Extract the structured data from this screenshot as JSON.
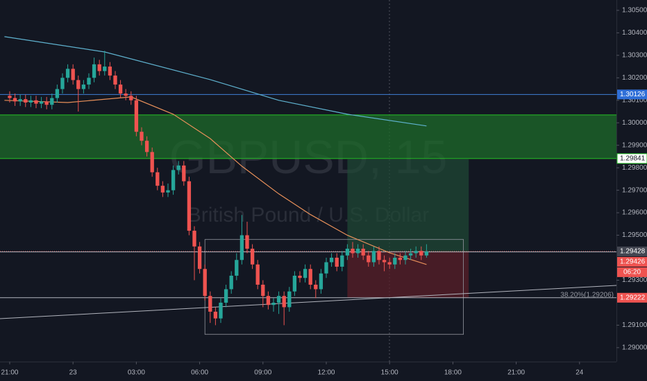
{
  "chart_data": {
    "type": "candlestick",
    "watermark": "GBPUSD, 15",
    "watermark_subtitle": "British Pound / U.S. Dollar",
    "xlim": [
      -1.84,
      115
    ],
    "ylim": [
      1.28938,
      1.30546
    ],
    "xticks": [
      {
        "value": 0,
        "label": "21:00"
      },
      {
        "value": 12,
        "label": "23"
      },
      {
        "value": 24,
        "label": "03:00"
      },
      {
        "value": 36,
        "label": "06:00"
      },
      {
        "value": 48,
        "label": "09:00"
      },
      {
        "value": 60,
        "label": "12:00"
      },
      {
        "value": 72,
        "label": "15:00"
      },
      {
        "value": 84,
        "label": "18:00"
      },
      {
        "value": 96,
        "label": "21:00"
      },
      {
        "value": 108,
        "label": "24"
      }
    ],
    "yticks": [
      {
        "value": 1.305,
        "label": "1.30500"
      },
      {
        "value": 1.304,
        "label": "1.30400"
      },
      {
        "value": 1.303,
        "label": "1.30300"
      },
      {
        "value": 1.302,
        "label": "1.30200"
      },
      {
        "value": 1.301,
        "label": "1.30100"
      },
      {
        "value": 1.3,
        "label": "1.30000"
      },
      {
        "value": 1.299,
        "label": "1.29900"
      },
      {
        "value": 1.298,
        "label": "1.29800"
      },
      {
        "value": 1.297,
        "label": "1.29700"
      },
      {
        "value": 1.296,
        "label": "1.29600"
      },
      {
        "value": 1.295,
        "label": "1.29500"
      },
      {
        "value": 1.293,
        "label": "1.29300"
      },
      {
        "value": 1.291,
        "label": "1.29100"
      },
      {
        "value": 1.29,
        "label": "1.29000"
      }
    ],
    "up_color": "#26a69a",
    "down_color": "#ef5350",
    "ohlc": [
      [
        1.3012,
        1.3014,
        1.3009,
        1.3011
      ],
      [
        1.3011,
        1.3013,
        1.30075,
        1.30095
      ],
      [
        1.30095,
        1.30125,
        1.30075,
        1.30105
      ],
      [
        1.30105,
        1.30125,
        1.3007,
        1.3009
      ],
      [
        1.3009,
        1.3012,
        1.3007,
        1.301
      ],
      [
        1.301,
        1.3012,
        1.30065,
        1.30085
      ],
      [
        1.30085,
        1.30115,
        1.30065,
        1.30095
      ],
      [
        1.30095,
        1.30115,
        1.3006,
        1.3008
      ],
      [
        1.3008,
        1.3013,
        1.3006,
        1.3011
      ],
      [
        1.3011,
        1.3017,
        1.3009,
        1.3015
      ],
      [
        1.3015,
        1.3022,
        1.3013,
        1.302
      ],
      [
        1.302,
        1.3026,
        1.3018,
        1.3024
      ],
      [
        1.3024,
        1.3026,
        1.3017,
        1.3019
      ],
      [
        1.3019,
        1.3021,
        1.3005,
        1.3015
      ],
      [
        1.3015,
        1.3019,
        1.3013,
        1.3017
      ],
      [
        1.3017,
        1.3022,
        1.3015,
        1.302
      ],
      [
        1.302,
        1.3029,
        1.3018,
        1.3026
      ],
      [
        1.3026,
        1.3028,
        1.3021,
        1.3023
      ],
      [
        1.3023,
        1.3032,
        1.3021,
        1.3025
      ],
      [
        1.3025,
        1.3027,
        1.3019,
        1.3021
      ],
      [
        1.3021,
        1.3023,
        1.3015,
        1.3017
      ],
      [
        1.3017,
        1.3019,
        1.3011,
        1.3013
      ],
      [
        1.3013,
        1.3015,
        1.301,
        1.3012
      ],
      [
        1.3012,
        1.3014,
        1.3008,
        1.301
      ],
      [
        1.301,
        1.3012,
        1.2994,
        1.2996
      ],
      [
        1.2996,
        1.2998,
        1.299,
        1.2992
      ],
      [
        1.2992,
        1.2994,
        1.2985,
        1.2987
      ],
      [
        1.2987,
        1.2989,
        1.2976,
        1.2978
      ],
      [
        1.2978,
        1.298,
        1.297,
        1.2972
      ],
      [
        1.2972,
        1.2974,
        1.2967,
        1.2969
      ],
      [
        1.2969,
        1.2973,
        1.2967,
        1.297
      ],
      [
        1.297,
        1.2981,
        1.2968,
        1.2979
      ],
      [
        1.2979,
        1.2983,
        1.2977,
        1.2981
      ],
      [
        1.2981,
        1.2983,
        1.2972,
        1.2974
      ],
      [
        1.2974,
        1.2976,
        1.295,
        1.2952
      ],
      [
        1.2952,
        1.2954,
        1.293,
        1.2945
      ],
      [
        1.2945,
        1.2947,
        1.2933,
        1.2935
      ],
      [
        1.2935,
        1.2937,
        1.2921,
        1.2923
      ],
      [
        1.2923,
        1.2925,
        1.2911,
        1.2916
      ],
      [
        1.2916,
        1.2918,
        1.291,
        1.2913
      ],
      [
        1.2913,
        1.2922,
        1.2911,
        1.292
      ],
      [
        1.292,
        1.2928,
        1.2918,
        1.2926
      ],
      [
        1.2926,
        1.2934,
        1.2924,
        1.2932
      ],
      [
        1.2932,
        1.2942,
        1.293,
        1.2939
      ],
      [
        1.2939,
        1.2959,
        1.2937,
        1.295
      ],
      [
        1.295,
        1.2956,
        1.2942,
        1.2944
      ],
      [
        1.2944,
        1.2946,
        1.2935,
        1.2937
      ],
      [
        1.2937,
        1.2939,
        1.2926,
        1.2928
      ],
      [
        1.2928,
        1.293,
        1.2918,
        1.2923
      ],
      [
        1.2923,
        1.2925,
        1.2917,
        1.2919
      ],
      [
        1.2919,
        1.2922,
        1.2916,
        1.292
      ],
      [
        1.292,
        1.2925,
        1.2915,
        1.2923
      ],
      [
        1.2923,
        1.2925,
        1.291,
        1.2918
      ],
      [
        1.2918,
        1.2927,
        1.2916,
        1.2925
      ],
      [
        1.2925,
        1.2934,
        1.2923,
        1.2932
      ],
      [
        1.2932,
        1.2934,
        1.2929,
        1.2931
      ],
      [
        1.2931,
        1.2937,
        1.2929,
        1.2935
      ],
      [
        1.2935,
        1.2937,
        1.2926,
        1.2928
      ],
      [
        1.2928,
        1.293,
        1.2922,
        1.2926
      ],
      [
        1.2926,
        1.2935,
        1.2924,
        1.2933
      ],
      [
        1.2933,
        1.294,
        1.2931,
        1.2938
      ],
      [
        1.2938,
        1.2942,
        1.2936,
        1.294
      ],
      [
        1.294,
        1.2942,
        1.2934,
        1.2936
      ],
      [
        1.2936,
        1.2943,
        1.2934,
        1.2941
      ],
      [
        1.2941,
        1.2946,
        1.2939,
        1.2944
      ],
      [
        1.2944,
        1.2947,
        1.294,
        1.2942
      ],
      [
        1.2942,
        1.2946,
        1.294,
        1.2944
      ],
      [
        1.2944,
        1.2946,
        1.2939,
        1.2941
      ],
      [
        1.2941,
        1.2943,
        1.2936,
        1.2938
      ],
      [
        1.2938,
        1.2945,
        1.2936,
        1.2943
      ],
      [
        1.2943,
        1.2945,
        1.2937,
        1.2939
      ],
      [
        1.2939,
        1.2941,
        1.2934,
        1.2938
      ],
      [
        1.2938,
        1.294,
        1.2935,
        1.2937
      ],
      [
        1.2937,
        1.2942,
        1.2935,
        1.294
      ],
      [
        1.294,
        1.2942,
        1.2937,
        1.2939
      ],
      [
        1.2939,
        1.2943,
        1.2937,
        1.2941
      ],
      [
        1.2941,
        1.2944,
        1.2939,
        1.2942
      ],
      [
        1.2942,
        1.2945,
        1.294,
        1.2943
      ],
      [
        1.2943,
        1.2945,
        1.2939,
        1.2941
      ],
      [
        1.2941,
        1.2946,
        1.294,
        1.29428
      ]
    ],
    "moving_averages": [
      {
        "color": "#5fb2cf",
        "x": [
          -1,
          18,
          38,
          51,
          64,
          79
        ],
        "values": [
          1.30383,
          1.30315,
          1.30192,
          1.301,
          1.30038,
          1.29986
        ]
      },
      {
        "color": "#e8905a",
        "x": [
          -1,
          11,
          23,
          31,
          38,
          44,
          51,
          57,
          64,
          72,
          79
        ],
        "values": [
          1.301,
          1.3009,
          1.30115,
          1.30038,
          1.2993,
          1.29807,
          1.29684,
          1.29592,
          1.295,
          1.29422,
          1.2937
        ]
      }
    ],
    "zone": {
      "top": 1.30035,
      "bottom": 1.29841,
      "color": "#1e6b2a"
    },
    "position": {
      "x": [
        64,
        87
      ],
      "entry": 1.29428,
      "target": 1.29838,
      "stop": 1.29222
    },
    "box": {
      "x": [
        37,
        86
      ],
      "top": 1.29481,
      "bottom": 1.29059
    },
    "trendline": {
      "x": [
        -1.84,
        115
      ],
      "values": [
        1.29129,
        1.29277
      ]
    },
    "fib_label": "38.20%(1.29206)",
    "levels": [
      {
        "value": 1.30126,
        "color": "#3f7fd8",
        "label_color": "#2f6fd8"
      },
      {
        "value": 1.29841,
        "color": "#26c426",
        "label_color": "#ffffff"
      },
      {
        "value": 1.29428,
        "color": "#ef5350",
        "label_color": "#434651",
        "dashed": true
      },
      {
        "value": 1.29426,
        "color": "#b2b5be",
        "label_color": "#ef5350"
      },
      {
        "value": 1.29222,
        "color": "#b2b5be",
        "label_color": "#ef5350"
      }
    ],
    "countdown": "06:20"
  }
}
